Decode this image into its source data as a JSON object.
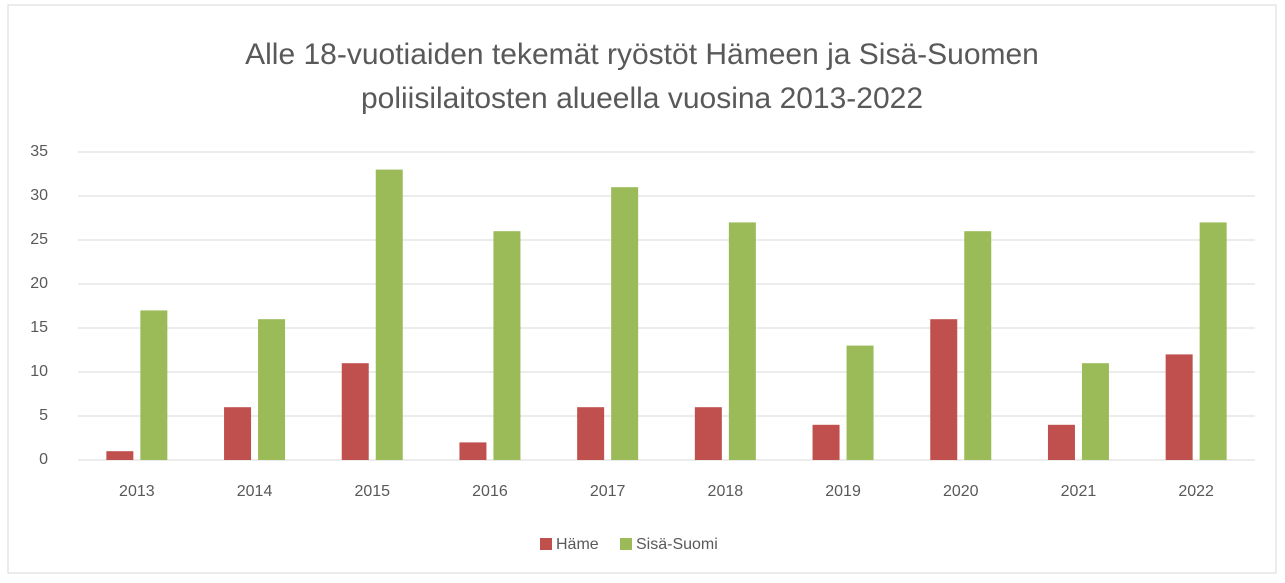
{
  "chart_data": {
    "type": "bar",
    "title": [
      "Alle 18-vuotiaiden tekemät ryöstöt Hämeen ja Sisä-Suomen",
      "poliisilaitosten alueella vuosina 2013-2022"
    ],
    "categories": [
      "2013",
      "2014",
      "2015",
      "2016",
      "2017",
      "2018",
      "2019",
      "2020",
      "2021",
      "2022"
    ],
    "series": [
      {
        "name": "Häme",
        "color": "#c0504d",
        "values": [
          1,
          6,
          11,
          2,
          6,
          6,
          4,
          16,
          4,
          12
        ]
      },
      {
        "name": "Sisä-Suomi",
        "color": "#9bbb59",
        "values": [
          17,
          16,
          33,
          26,
          31,
          27,
          13,
          26,
          11,
          27
        ]
      }
    ],
    "ylim": [
      0,
      35
    ],
    "yticks": [
      0,
      5,
      10,
      15,
      20,
      25,
      30,
      35
    ],
    "grid": true,
    "legend": "bottom"
  }
}
